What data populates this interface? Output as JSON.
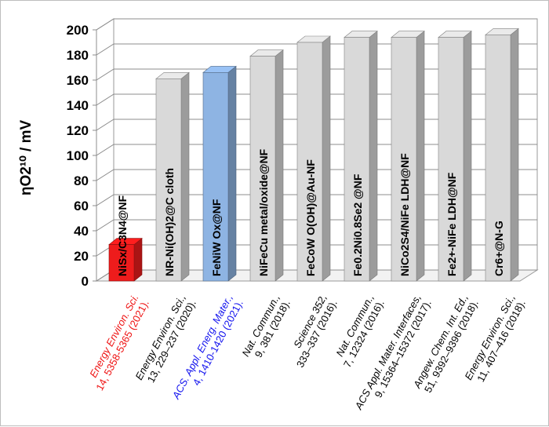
{
  "chart_data": {
    "type": "bar",
    "ylabel": "ηO2¹⁰ / mV",
    "ylim": [
      0,
      200
    ],
    "yticks": [
      0,
      20,
      40,
      60,
      80,
      100,
      120,
      140,
      160,
      180,
      200
    ],
    "grid": true,
    "categories": [
      "NiSx/C3N4@NF",
      "NR-Ni(OH)2@C cloth",
      "FeNiW Ox@NF",
      "NiFeCu metal/oxide@NF",
      "FeCoW O(OH)@Au-NF",
      "Fe0.2Ni0.8Se2 @NF",
      "NiCo2S4/NiFe LDH@NF",
      "Fe2+-NiFe LDH@NF",
      "Cr6+@N-G"
    ],
    "values": [
      29,
      161,
      166,
      179,
      190,
      194,
      194,
      194,
      196
    ],
    "colors": [
      "#ee1c1c",
      "#d9d9d9",
      "#8eb4e3",
      "#d9d9d9",
      "#d9d9d9",
      "#d9d9d9",
      "#d9d9d9",
      "#d9d9d9",
      "#d9d9d9"
    ],
    "references": [
      {
        "line1": "Energy Environ. Sci.",
        "line2": "14, 5358-5365 (2021).",
        "color": "#ee1111"
      },
      {
        "line1": "Energy Environ. Sci.,",
        "line2": "13, 229–237 (2020).",
        "color": "#000000"
      },
      {
        "line1": "ACS. Appl. Energ. Mater.,",
        "line2": "4, 1410-1420 (2021).",
        "color": "#1111ee"
      },
      {
        "line1": "Nat. Commun.,",
        "line2": "9, 381 (2018).",
        "color": "#000000"
      },
      {
        "line1": "Science 352,",
        "line2": "333–337 (2016).",
        "color": "#000000"
      },
      {
        "line1": "Nat. Commun.,",
        "line2": "7, 12324 (2016).",
        "color": "#000000"
      },
      {
        "line1": "ACS Appl. Mater. Interfaces,",
        "line2": "9, 15364–15372 (2017).",
        "color": "#000000"
      },
      {
        "line1": "Angew. Chem. Int. Ed.,",
        "line2": "51, 9392–9396 (2018).",
        "color": "#000000"
      },
      {
        "line1": "Energy Environ. Sci.,",
        "line2": "11, 407–416 (2018).",
        "color": "#000000"
      }
    ]
  }
}
